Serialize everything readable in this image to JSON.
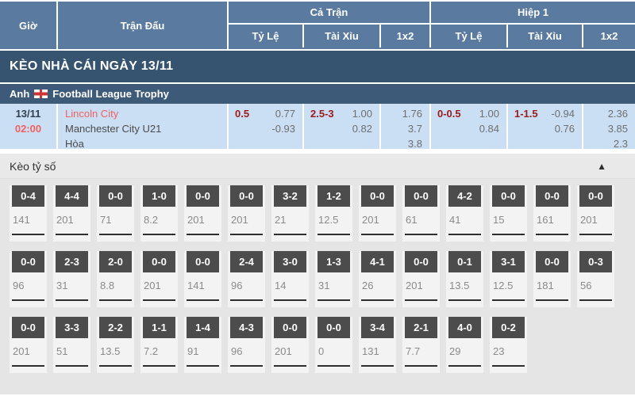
{
  "header": {
    "col_time": "Giờ",
    "col_match": "Trận Đấu",
    "group_full": "Cả Trận",
    "group_h1": "Hiệp 1",
    "sub_handicap": "Tỷ Lệ",
    "sub_over_under": "Tài Xỉu",
    "sub_1x2": "1x2"
  },
  "title_bar": {
    "label": "KÈO NHÀ CÁI NGÀY 13/11"
  },
  "league_bar": {
    "country": "Anh",
    "league": "Football League Trophy",
    "flag": "england-flag"
  },
  "match": {
    "date": "13/11",
    "time": "02:00",
    "home_team": "Lincoln City",
    "away_team": "Manchester City U21",
    "draw_label": "Hòa",
    "full_time": {
      "handicap_line": "0.5",
      "handicap_odds": [
        "0.77",
        "-0.93"
      ],
      "ou_line": "2.5-3",
      "ou_odds": [
        "1.00",
        "0.82"
      ],
      "one_x_two": [
        "1.76",
        "3.7",
        "3.8"
      ]
    },
    "first_half": {
      "handicap_line": "0-0.5",
      "handicap_odds": [
        "1.00",
        "0.84"
      ],
      "ou_line": "1-1.5",
      "ou_odds": [
        "-0.94",
        "0.76"
      ],
      "one_x_two": [
        "2.36",
        "3.85",
        "2.3"
      ]
    }
  },
  "score_section": {
    "title": "Kèo tỷ số",
    "collapse_icon": "▲",
    "rows": [
      [
        {
          "score": "0-4",
          "odds": "141"
        },
        {
          "score": "4-4",
          "odds": "201"
        },
        {
          "score": "0-0",
          "odds": "71"
        },
        {
          "score": "1-0",
          "odds": "8.2"
        },
        {
          "score": "0-0",
          "odds": "201"
        },
        {
          "score": "0-0",
          "odds": "201"
        },
        {
          "score": "3-2",
          "odds": "21"
        },
        {
          "score": "1-2",
          "odds": "12.5"
        },
        {
          "score": "0-0",
          "odds": "201"
        },
        {
          "score": "0-0",
          "odds": "61"
        },
        {
          "score": "4-2",
          "odds": "41"
        },
        {
          "score": "0-0",
          "odds": "15"
        },
        {
          "score": "0-0",
          "odds": "161"
        },
        {
          "score": "0-0",
          "odds": "201"
        }
      ],
      [
        {
          "score": "0-0",
          "odds": "96"
        },
        {
          "score": "2-3",
          "odds": "31"
        },
        {
          "score": "2-0",
          "odds": "8.8"
        },
        {
          "score": "0-0",
          "odds": "201"
        },
        {
          "score": "0-0",
          "odds": "141"
        },
        {
          "score": "2-4",
          "odds": "96"
        },
        {
          "score": "3-0",
          "odds": "14"
        },
        {
          "score": "1-3",
          "odds": "31"
        },
        {
          "score": "4-1",
          "odds": "26"
        },
        {
          "score": "0-0",
          "odds": "201"
        },
        {
          "score": "0-1",
          "odds": "13.5"
        },
        {
          "score": "3-1",
          "odds": "12.5"
        },
        {
          "score": "0-0",
          "odds": "181"
        },
        {
          "score": "0-3",
          "odds": "56"
        }
      ],
      [
        {
          "score": "0-0",
          "odds": "201"
        },
        {
          "score": "3-3",
          "odds": "51"
        },
        {
          "score": "2-2",
          "odds": "13.5"
        },
        {
          "score": "1-1",
          "odds": "7.2"
        },
        {
          "score": "1-4",
          "odds": "91"
        },
        {
          "score": "4-3",
          "odds": "96"
        },
        {
          "score": "0-0",
          "odds": "201"
        },
        {
          "score": "0-0",
          "odds": "0"
        },
        {
          "score": "3-4",
          "odds": "131"
        },
        {
          "score": "2-1",
          "odds": "7.7"
        },
        {
          "score": "4-0",
          "odds": "29"
        },
        {
          "score": "0-2",
          "odds": "23"
        }
      ]
    ]
  },
  "colors": {
    "header_blue": "#5a7aa0",
    "title_bar_blue": "#365470",
    "league_bar_blue": "#3d5b79",
    "match_row_blue": "#cbdff4",
    "accent_red": "#f2605f",
    "handicap_maroon": "#9b1b1b",
    "score_box_gray": "#4c4c4c"
  }
}
